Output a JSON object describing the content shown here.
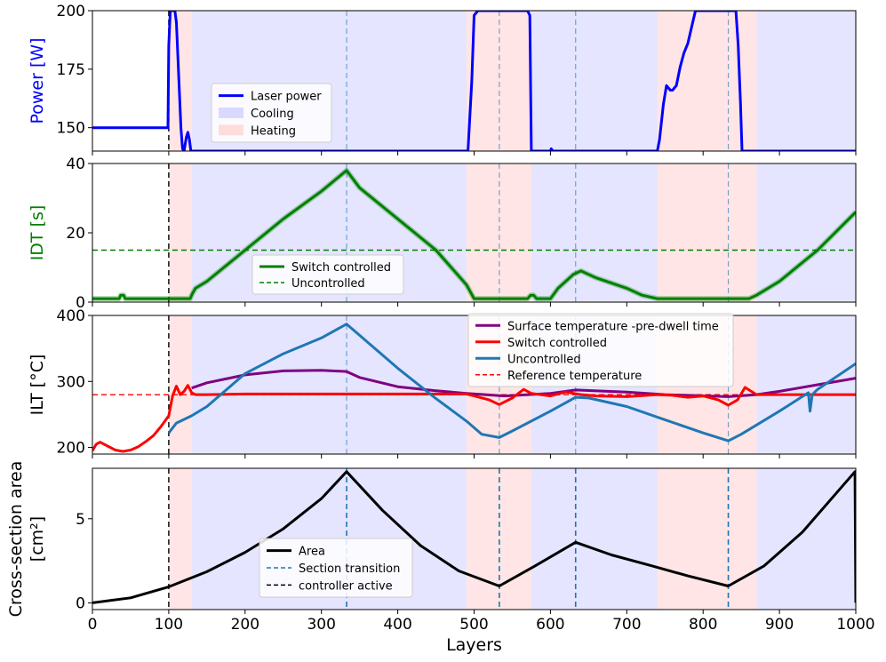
{
  "chart_data": {
    "type": "line",
    "x_axis": {
      "label": "Layers",
      "range": [
        0,
        1000
      ],
      "ticks": [
        0,
        100,
        200,
        300,
        400,
        500,
        600,
        700,
        800,
        900,
        1000
      ]
    },
    "regions": [
      {
        "type": "heating",
        "x": [
          100,
          130
        ]
      },
      {
        "type": "cooling",
        "x": [
          130,
          490
        ]
      },
      {
        "type": "heating",
        "x": [
          490,
          575
        ]
      },
      {
        "type": "cooling",
        "x": [
          575,
          740
        ]
      },
      {
        "type": "heating",
        "x": [
          740,
          870
        ]
      },
      {
        "type": "cooling",
        "x": [
          870,
          1000
        ]
      }
    ],
    "section_transitions": [
      333,
      533,
      633,
      833
    ],
    "controller_active": 100,
    "panels": [
      {
        "id": "power",
        "ylabel": "Power [W]",
        "ylabel_color": "#0000ff",
        "ylim": [
          140,
          200
        ],
        "yticks": [
          150,
          175,
          200
        ],
        "legend": [
          {
            "label": "Laser power",
            "kind": "line",
            "color": "#0000ff"
          },
          {
            "label": "Cooling",
            "kind": "patch",
            "color": "#d9d9ff"
          },
          {
            "label": "Heating",
            "kind": "patch",
            "color": "#ffdcdc"
          }
        ],
        "series": [
          {
            "name": "Laser power",
            "color": "#0000ff",
            "x": [
              0,
              99,
              100,
              102,
              104,
              108,
              110,
              112,
              114,
              116,
              118,
              120,
              123,
              125,
              127,
              129,
              131,
              490,
              492,
              497,
              500,
              505,
              515,
              560,
              570,
              573,
              575,
              577,
              600,
              601,
              603,
              740,
              743,
              748,
              752,
              757,
              760,
              765,
              770,
              775,
              780,
              785,
              790,
              795,
              800,
              820,
              843,
              846,
              849,
              851,
              1000
            ],
            "y": [
              150,
              150,
              185,
              200,
              200,
              200,
              195,
              180,
              165,
              150,
              141,
              140,
              146,
              148,
              145,
              140,
              140,
              140,
              140,
              170,
              198,
              200,
              200,
              200,
              200,
              198,
              140,
              140,
              140,
              141,
              140,
              140,
              145,
              160,
              168,
              166,
              166,
              168,
              176,
              182,
              186,
              193,
              200,
              200,
              200,
              200,
              200,
              185,
              160,
              140,
              140
            ]
          }
        ]
      },
      {
        "id": "idt",
        "ylabel": "IDT [s]",
        "ylabel_color": "#008000",
        "ylim": [
          0,
          40
        ],
        "yticks": [
          0,
          20,
          40
        ],
        "reference_line": {
          "y": 15,
          "color": "#008000",
          "label": "Uncontrolled"
        },
        "legend": [
          {
            "label": "Switch controlled",
            "kind": "line",
            "color": "#008000"
          },
          {
            "label": "Uncontrolled",
            "kind": "dashed",
            "color": "#008000"
          }
        ],
        "series": [
          {
            "name": "Switch controlled",
            "color": "#008000",
            "x": [
              0,
              35,
              37,
              41,
              43,
              100,
              128,
              131,
              135,
              150,
              200,
              250,
              300,
              333,
              350,
              400,
              450,
              490,
              500,
              570,
              574,
              578,
              582,
              600,
              610,
              630,
              640,
              660,
              700,
              720,
              740,
              800,
              840,
              860,
              870,
              900,
              950,
              1000
            ],
            "y": [
              1,
              1,
              2,
              2,
              1,
              1,
              1,
              2.5,
              4,
              6,
              15,
              24,
              32,
              38,
              33,
              24,
              15,
              5,
              1,
              1,
              2,
              2,
              1,
              1,
              4,
              8,
              9,
              7,
              4,
              2,
              1,
              1,
              1,
              1,
              2,
              6,
              15,
              26
            ]
          }
        ]
      },
      {
        "id": "ilt",
        "ylabel": "ILT [°C]",
        "ylabel_color": "#000000",
        "ylim": [
          190,
          400
        ],
        "yticks": [
          200,
          300,
          400
        ],
        "reference_line": {
          "y": 280,
          "color": "#ff0000",
          "label": "Reference temperature"
        },
        "legend": [
          {
            "label": "Surface temperature -pre-dwell time",
            "kind": "line",
            "color": "#800080"
          },
          {
            "label": "Switch controlled",
            "kind": "line",
            "color": "#ff0000"
          },
          {
            "label": "Uncontrolled",
            "kind": "line",
            "color": "#1f77b4"
          },
          {
            "label": "Reference temperature",
            "kind": "dashed",
            "color": "#ff0000"
          }
        ],
        "series": [
          {
            "name": "Surface temperature -pre-dwell time",
            "color": "#800080",
            "x": [
              130,
              150,
              200,
              250,
              300,
              333,
              350,
              400,
              450,
              490,
              540,
              600,
              633,
              700,
              750,
              833,
              870,
              900,
              950,
              1000
            ],
            "y": [
              290,
              298,
              310,
              316,
              317,
              315,
              306,
              292,
              286,
              282,
              278,
              282,
              287,
              284,
              280,
              277,
              280,
              285,
              295,
              305
            ]
          },
          {
            "name": "Switch controlled",
            "color": "#ff0000",
            "x": [
              0,
              5,
              10,
              20,
              30,
              40,
              50,
              60,
              70,
              80,
              90,
              100,
              105,
              110,
              115,
              120,
              125,
              130,
              135,
              150,
              200,
              300,
              400,
              490,
              500,
              520,
              533,
              550,
              565,
              575,
              600,
              620,
              640,
              660,
              700,
              740,
              760,
              780,
              800,
              820,
              833,
              845,
              855,
              870,
              900,
              1000
            ],
            "y": [
              195,
              205,
              208,
              202,
              196,
              194,
              196,
              201,
              209,
              218,
              232,
              248,
              278,
              293,
              280,
              285,
              294,
              283,
              280,
              280,
              281,
              281,
              281,
              281,
              278,
              272,
              265,
              275,
              288,
              282,
              278,
              284,
              280,
              278,
              277,
              280,
              279,
              276,
              278,
              272,
              264,
              272,
              291,
              280,
              280,
              280
            ]
          },
          {
            "name": "Uncontrolled",
            "color": "#1f77b4",
            "x": [
              100,
              110,
              130,
              150,
              200,
              250,
              300,
              333,
              350,
              400,
              450,
              490,
              510,
              533,
              550,
              600,
              633,
              650,
              700,
              750,
              800,
              833,
              850,
              900,
              938,
              940,
              943,
              950,
              1000
            ],
            "y": [
              222,
              237,
              248,
              262,
              312,
              342,
              366,
              387,
              370,
              320,
              274,
              240,
              220,
              215,
              225,
              255,
              276,
              275,
              262,
              242,
              222,
              210,
              220,
              255,
              283,
              255,
              280,
              288,
              327
            ]
          }
        ]
      },
      {
        "id": "area",
        "ylabel": "Cross-section area\n[cm²]",
        "ylabel_lines": [
          "Cross-section area",
          "[cm²]"
        ],
        "ylabel_color": "#000000",
        "ylim": [
          -0.4,
          8
        ],
        "yticks": [
          0,
          5
        ],
        "legend": [
          {
            "label": "Area",
            "kind": "line",
            "color": "#000000"
          },
          {
            "label": "Section transition",
            "kind": "dashed",
            "color": "#1f77b4"
          },
          {
            "label": "controller active",
            "kind": "dashed",
            "color": "#000000"
          }
        ],
        "series": [
          {
            "name": "Area",
            "color": "#000000",
            "x": [
              0,
              50,
              100,
              150,
              200,
              250,
              300,
              333,
              380,
              430,
              480,
              533,
              580,
              633,
              680,
              733,
              780,
              833,
              880,
              930,
              999,
              1000
            ],
            "y": [
              0,
              0.3,
              0.95,
              1.85,
              3.0,
              4.4,
              6.2,
              7.8,
              5.5,
              3.4,
              1.9,
              1.0,
              2.2,
              3.6,
              2.85,
              2.2,
              1.6,
              1.0,
              2.2,
              4.2,
              7.8,
              0
            ]
          }
        ]
      }
    ]
  }
}
